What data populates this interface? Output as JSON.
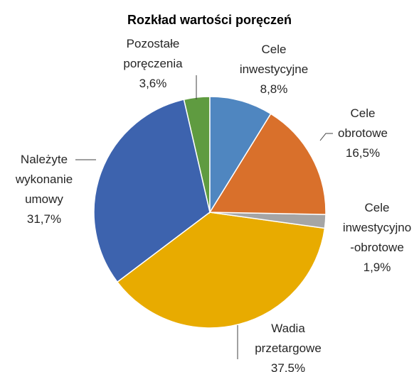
{
  "chart_data": {
    "type": "pie",
    "title": "Rozkład wartości poręczeń",
    "categories": [
      "Cele\ninwestycyjne",
      "Cele\nobrotowe",
      "Cele\ninwestycyjno\n-obrotowe",
      "Wadia\nprzetargowe",
      "Należyte\nwykonanie\numowy",
      "Pozostałe\nporęczenia"
    ],
    "values": [
      8.8,
      16.5,
      1.9,
      37.5,
      31.7,
      3.6
    ],
    "value_labels": [
      "8,8%",
      "16,5%",
      "1,9%",
      "37,5%",
      "31,7%",
      "3,6%"
    ],
    "colors": [
      "#4f86c0",
      "#d9702b",
      "#a5a5a5",
      "#e8ab00",
      "#3d63ae",
      "#5f9b40"
    ]
  }
}
